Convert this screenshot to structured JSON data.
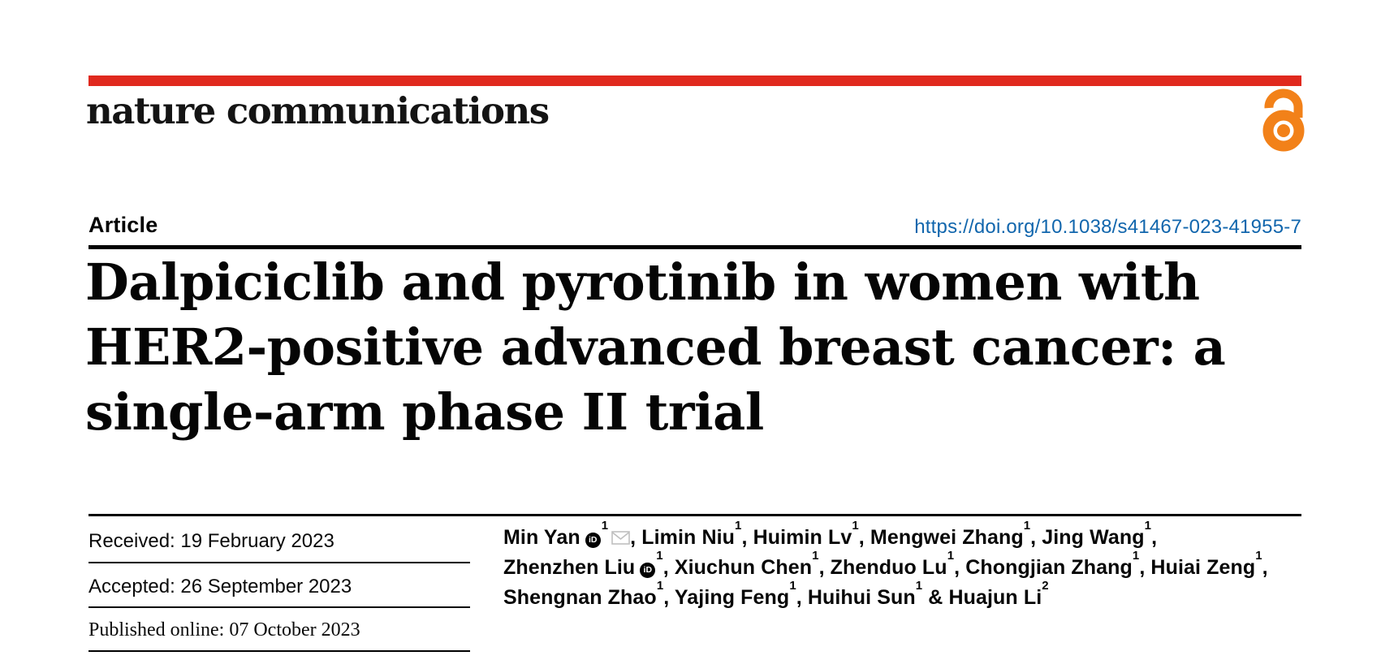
{
  "journal": {
    "name": "nature communications"
  },
  "article": {
    "type_label": "Article",
    "doi": "https://doi.org/10.1038/s41467-023-41955-7",
    "title_lines": [
      "Dalpiciclib and pyrotinib in women with",
      "HER2-positive advanced breast cancer: a",
      "single-arm phase II trial"
    ]
  },
  "dates": [
    {
      "text": "Received: 19 February 2023"
    },
    {
      "text": "Accepted: 26 September 2023"
    },
    {
      "text": "Published online: 07 October 2023"
    }
  ],
  "authors": {
    "orcid_icon_text": "iD",
    "list": [
      {
        "name": "Min Yan",
        "orcid": true,
        "sup": "1",
        "email": true,
        "sep": ", "
      },
      {
        "name": "Limin Niu",
        "sup": "1",
        "sep": ", "
      },
      {
        "name": "Huimin Lv",
        "sup": "1",
        "sep": ", "
      },
      {
        "name": "Mengwei Zhang",
        "sup": "1",
        "sep": ", "
      },
      {
        "name": "Jing Wang",
        "sup": "1",
        "sep": ",",
        "break_after": true
      },
      {
        "name": "Zhenzhen Liu",
        "orcid": true,
        "sup": "1",
        "sep": ", "
      },
      {
        "name": "Xiuchun Chen",
        "sup": "1",
        "sep": ", "
      },
      {
        "name": "Zhenduo Lu",
        "sup": "1",
        "sep": ", "
      },
      {
        "name": "Chongjian Zhang",
        "sup": "1",
        "sep": ", "
      },
      {
        "name": "Huiai Zeng",
        "sup": "1",
        "sep": ",",
        "break_after": true
      },
      {
        "name": "Shengnan Zhao",
        "sup": "1",
        "sep": ", "
      },
      {
        "name": "Yajing Feng",
        "sup": "1",
        "sep": ", "
      },
      {
        "name": "Huihui Sun",
        "sup": "1",
        "sep": " & "
      },
      {
        "name": "Huajun Li",
        "sup": "2",
        "sep": ""
      }
    ]
  },
  "icons": {
    "open_access": "open-lock",
    "orcid": "orcid-id-badge",
    "email": "envelope"
  },
  "colors": {
    "brand_red": "#e0291e",
    "link_blue": "#1166ad",
    "oa_orange": "#f28119",
    "ink": "#0a0a0a",
    "envelope_gray": "#bfbfbf"
  }
}
